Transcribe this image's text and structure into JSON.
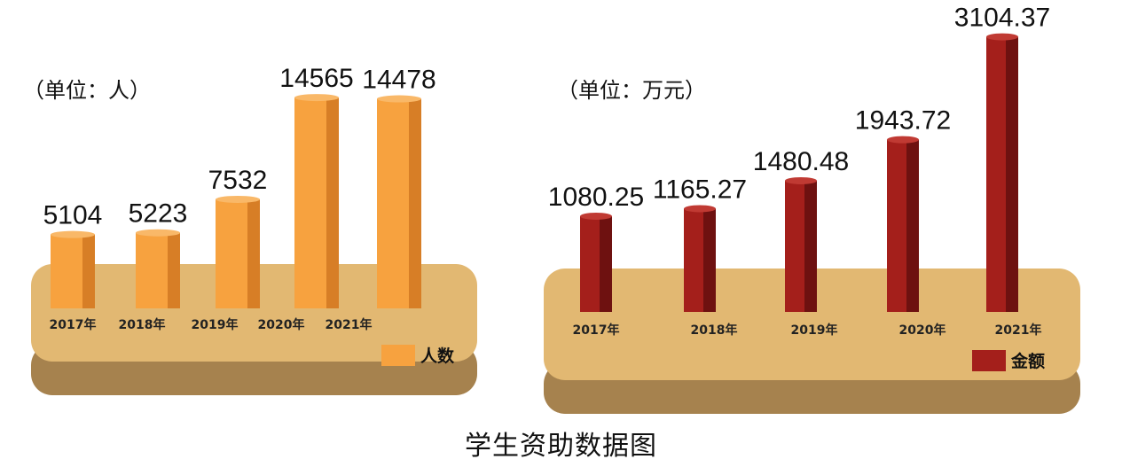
{
  "caption": "学生资助数据图",
  "chart_data": [
    {
      "type": "bar",
      "unit_label": "（单位：人）",
      "categories": [
        "2017年",
        "2018年",
        "2019年",
        "2020年",
        "2021年"
      ],
      "series": [
        {
          "name": "人数",
          "values": [
            5104,
            5223,
            7532,
            14565,
            14478
          ]
        }
      ],
      "value_labels": [
        "5104",
        "5223",
        "7532",
        "14565",
        "14478"
      ],
      "colors": {
        "front": "#f7a23f",
        "side": "#d77e26",
        "top": "#f9b868",
        "base_top": "#e2b872",
        "base_side": "#a6824e"
      }
    },
    {
      "type": "bar",
      "unit_label": "（单位：万元）",
      "categories": [
        "2017年",
        "2018年",
        "2019年",
        "2020年",
        "2021年"
      ],
      "series": [
        {
          "name": "金额",
          "values": [
            1080.25,
            1165.27,
            1480.48,
            1943.72,
            3104.37
          ]
        }
      ],
      "value_labels": [
        "1080.25",
        "1165.27",
        "1480.48",
        "1943.72",
        "3104.37"
      ],
      "colors": {
        "front": "#a41f1b",
        "side": "#6e1110",
        "top": "#c03a33",
        "base_top": "#e2b872",
        "base_side": "#a6824e"
      }
    }
  ]
}
